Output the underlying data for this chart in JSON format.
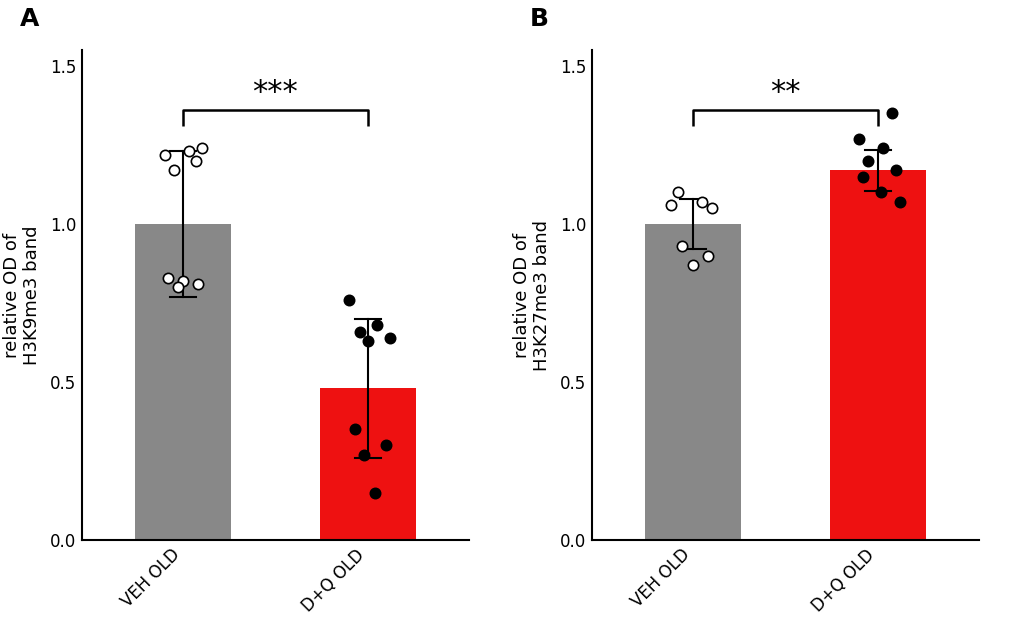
{
  "panel_A": {
    "title": "A",
    "ylabel": "relative OD of\nH3K9me3 band",
    "categories": [
      "VEH OLD",
      "D+Q OLD"
    ],
    "bar_means": [
      1.0,
      0.48
    ],
    "bar_sems": [
      0.23,
      0.22
    ],
    "bar_colors": [
      "#888888",
      "#ee1111"
    ],
    "veh_dots": [
      1.17,
      1.2,
      1.22,
      1.24,
      1.23,
      0.83,
      0.82,
      0.81,
      0.8
    ],
    "veh_dot_x": [
      -0.05,
      0.07,
      -0.1,
      0.1,
      0.03,
      -0.08,
      0.0,
      0.08,
      -0.03
    ],
    "dq_dots": [
      0.76,
      0.68,
      0.66,
      0.64,
      0.63,
      0.35,
      0.3,
      0.27,
      0.15
    ],
    "dq_dot_x": [
      -0.1,
      0.05,
      -0.04,
      0.12,
      0.0,
      -0.07,
      0.1,
      -0.02,
      0.04
    ],
    "significance": "***",
    "sig_color": "#000000",
    "ylim": [
      0.0,
      1.55
    ],
    "yticks": [
      0.0,
      0.5,
      1.0,
      1.5
    ]
  },
  "panel_B": {
    "title": "B",
    "ylabel": "relative OD of\nH3K27me3 band",
    "categories": [
      "VEH OLD",
      "D+Q OLD"
    ],
    "bar_means": [
      1.0,
      1.17
    ],
    "bar_sems": [
      0.08,
      0.065
    ],
    "bar_colors": [
      "#888888",
      "#ee1111"
    ],
    "veh_dots": [
      1.1,
      1.07,
      1.06,
      1.05,
      0.93,
      0.9,
      0.87
    ],
    "veh_dot_x": [
      -0.08,
      0.05,
      -0.12,
      0.1,
      -0.06,
      0.08,
      0.0
    ],
    "dq_dots": [
      1.35,
      1.27,
      1.24,
      1.2,
      1.17,
      1.15,
      1.1,
      1.07
    ],
    "dq_dot_x": [
      0.08,
      -0.1,
      0.03,
      -0.05,
      0.1,
      -0.08,
      0.02,
      0.12
    ],
    "significance": "**",
    "sig_color": "#000000",
    "ylim": [
      0.0,
      1.55
    ],
    "yticks": [
      0.0,
      0.5,
      1.0,
      1.5
    ]
  },
  "figure_bg": "#ffffff",
  "bar_width": 0.52,
  "dot_size": 55,
  "dot_linewidth": 1.2,
  "errorbar_linewidth": 1.5,
  "sig_fontsize": 22,
  "axis_label_fontsize": 13,
  "tick_label_fontsize": 12,
  "panel_label_fontsize": 18
}
